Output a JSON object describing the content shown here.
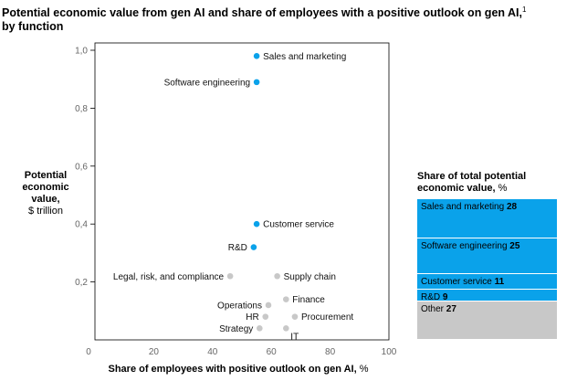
{
  "header": {
    "title_line1": "Potential economic value from gen AI and share of employees with a positive outlook on gen AI,",
    "title_sup": "1",
    "title_line2": "by function"
  },
  "chart_data": {
    "type": "scatter",
    "xlabel_bold": "Share of employees with positive outlook on gen AI,",
    "xlabel_unit": " %",
    "ylabel_bold": "Potential economic value,",
    "ylabel_unit": "$ trillion",
    "xlim": [
      0,
      100
    ],
    "ylim": [
      0,
      1.0
    ],
    "x_ticks": [
      "0",
      "20",
      "40",
      "60",
      "80",
      "100"
    ],
    "y_ticks": [
      "0,2",
      "0,4",
      "0,6",
      "0,8",
      "1,0"
    ],
    "y_tick_values": [
      0.2,
      0.4,
      0.6,
      0.8,
      1.0
    ],
    "x_tick_values": [
      0,
      20,
      40,
      60,
      80,
      100
    ],
    "colors": {
      "highlight": "#0aa2ea",
      "other": "#c8c8c8"
    },
    "points": [
      {
        "label": "Sales and marketing",
        "x": 55,
        "y": 0.98,
        "highlight": true,
        "anchor": "right"
      },
      {
        "label": "Software engineering",
        "x": 55,
        "y": 0.89,
        "highlight": true,
        "anchor": "left"
      },
      {
        "label": "Customer service",
        "x": 55,
        "y": 0.4,
        "highlight": true,
        "anchor": "right"
      },
      {
        "label": "R&D",
        "x": 54,
        "y": 0.32,
        "highlight": true,
        "anchor": "left"
      },
      {
        "label": "Legal, risk, and compliance",
        "x": 46,
        "y": 0.22,
        "highlight": false,
        "anchor": "left"
      },
      {
        "label": "Supply chain",
        "x": 62,
        "y": 0.22,
        "highlight": false,
        "anchor": "right"
      },
      {
        "label": "Operations",
        "x": 59,
        "y": 0.12,
        "highlight": false,
        "anchor": "left"
      },
      {
        "label": "Finance",
        "x": 65,
        "y": 0.14,
        "highlight": false,
        "anchor": "right"
      },
      {
        "label": "HR",
        "x": 58,
        "y": 0.08,
        "highlight": false,
        "anchor": "left"
      },
      {
        "label": "Procurement",
        "x": 68,
        "y": 0.08,
        "highlight": false,
        "anchor": "right"
      },
      {
        "label": "Strategy",
        "x": 56,
        "y": 0.04,
        "highlight": false,
        "anchor": "left"
      },
      {
        "label": "IT",
        "x": 65,
        "y": 0.04,
        "highlight": false,
        "anchor": "right-below"
      }
    ]
  },
  "legend": {
    "title_bold": "Share of total potential economic value,",
    "title_unit": " %",
    "segments": [
      {
        "label": "Sales and marketing",
        "value": 28,
        "color": "#0aa2ea"
      },
      {
        "label": "Software engineering",
        "value": 25,
        "color": "#0aa2ea"
      },
      {
        "label": "Customer service",
        "value": 11,
        "color": "#0aa2ea"
      },
      {
        "label": "R&D",
        "value": 9,
        "color": "#0aa2ea"
      },
      {
        "label": "Other",
        "value": 27,
        "color": "#c8c8c8"
      }
    ]
  }
}
